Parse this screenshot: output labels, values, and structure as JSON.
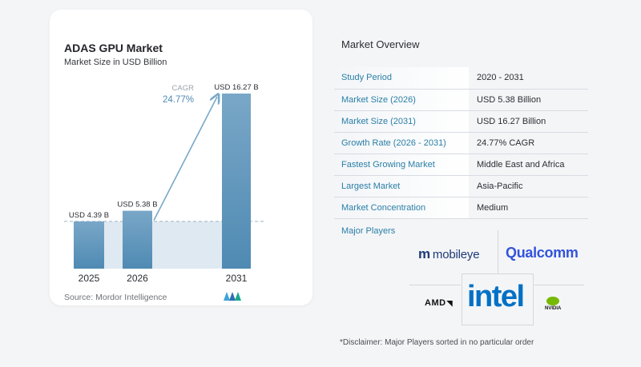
{
  "chart_data": {
    "type": "bar",
    "title": "ADAS GPU Market",
    "subtitle": "Market Size in USD Billion",
    "categories": [
      "2025",
      "2026",
      "2031"
    ],
    "values": [
      4.39,
      5.38,
      16.27
    ],
    "value_labels": [
      "USD 4.39 B",
      "USD 5.38 B",
      "USD 16.27 B"
    ],
    "cagr_label": "CAGR",
    "cagr_value": "24.77%",
    "ylim": [
      0,
      18
    ],
    "grid": false,
    "colors": {
      "bar_top": "#79a7c7",
      "bar_bottom": "#4f8ab3",
      "baseline_area": "#dfe9f2",
      "arrow": "#78a9ca",
      "dashed": "#9fb3c4"
    }
  },
  "source": "Source: Mordor Intelligence",
  "overview": {
    "title": "Market Overview",
    "rows": [
      {
        "label": "Study Period",
        "value": "2020 - 2031"
      },
      {
        "label": "Market Size (2026)",
        "value": "USD 5.38 Billion"
      },
      {
        "label": "Market Size (2031)",
        "value": "USD 16.27 Billion"
      },
      {
        "label": "Growth Rate (2026 - 2031)",
        "value": "24.77% CAGR"
      },
      {
        "label": "Fastest Growing Market",
        "value": "Middle East and Africa"
      },
      {
        "label": "Largest Market",
        "value": "Asia-Pacific"
      },
      {
        "label": "Market Concentration",
        "value": "Medium"
      }
    ],
    "accent_color": "#2a7fa6"
  },
  "players": {
    "title": "Major Players",
    "logos": [
      "mobileye",
      "Qualcomm",
      "AMD",
      "intel",
      "NVIDIA"
    ]
  },
  "disclaimer": "*Disclaimer: Major Players sorted in no particular order"
}
